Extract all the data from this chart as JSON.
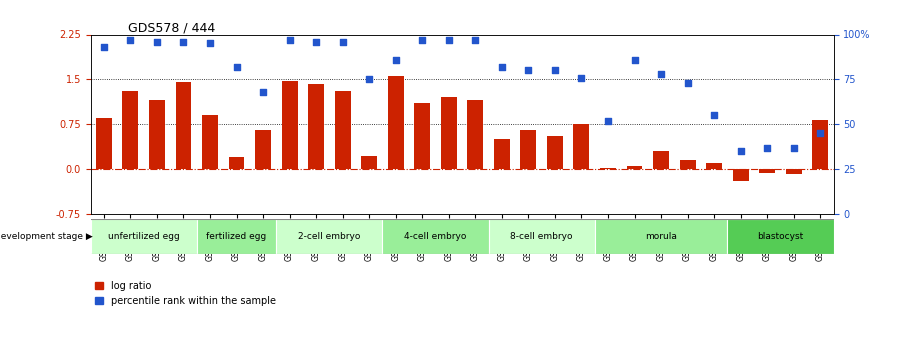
{
  "title": "GDS578 / 444",
  "samples": [
    "GSM14658",
    "GSM14660",
    "GSM14661",
    "GSM14662",
    "GSM14663",
    "GSM14664",
    "GSM14665",
    "GSM14666",
    "GSM14667",
    "GSM14668",
    "GSM14677",
    "GSM14678",
    "GSM14679",
    "GSM14680",
    "GSM14681",
    "GSM14682",
    "GSM14683",
    "GSM14684",
    "GSM14685",
    "GSM14686",
    "GSM14687",
    "GSM14688",
    "GSM14689",
    "GSM14690",
    "GSM14691",
    "GSM14692",
    "GSM14693",
    "GSM14694"
  ],
  "log_ratio": [
    0.85,
    1.3,
    1.15,
    1.45,
    0.9,
    0.2,
    0.65,
    1.47,
    1.42,
    1.3,
    0.22,
    1.55,
    1.1,
    1.2,
    1.15,
    0.5,
    0.65,
    0.55,
    0.75,
    0.02,
    0.05,
    0.3,
    0.15,
    0.1,
    -0.2,
    -0.07,
    -0.08,
    0.82
  ],
  "percentile_rank": [
    93,
    97,
    96,
    96,
    95,
    82,
    68,
    97,
    96,
    96,
    75,
    86,
    97,
    97,
    97,
    82,
    80,
    80,
    76,
    52,
    86,
    78,
    73,
    55,
    35,
    37,
    37,
    45
  ],
  "stages": [
    {
      "name": "unfertilized egg",
      "start": 0,
      "end": 4,
      "color": "#ccffcc"
    },
    {
      "name": "fertilized egg",
      "start": 4,
      "end": 7,
      "color": "#99ee99"
    },
    {
      "name": "2-cell embryo",
      "start": 7,
      "end": 11,
      "color": "#ccffcc"
    },
    {
      "name": "4-cell embryo",
      "start": 11,
      "end": 15,
      "color": "#99ee99"
    },
    {
      "name": "8-cell embryo",
      "start": 15,
      "end": 19,
      "color": "#ccffcc"
    },
    {
      "name": "morula",
      "start": 19,
      "end": 24,
      "color": "#99ee99"
    },
    {
      "name": "blastocyst",
      "start": 24,
      "end": 28,
      "color": "#55cc55"
    }
  ],
  "ylim_left": [
    -0.75,
    2.25
  ],
  "ylim_right": [
    0,
    100
  ],
  "yticks_left": [
    -0.75,
    0.0,
    0.75,
    1.5,
    2.25
  ],
  "yticks_right": [
    0,
    25,
    50,
    75,
    100
  ],
  "hlines": [
    0.0,
    0.75,
    1.5
  ],
  "bar_color": "#cc2200",
  "dot_color": "#2255cc",
  "bar_width": 0.6
}
